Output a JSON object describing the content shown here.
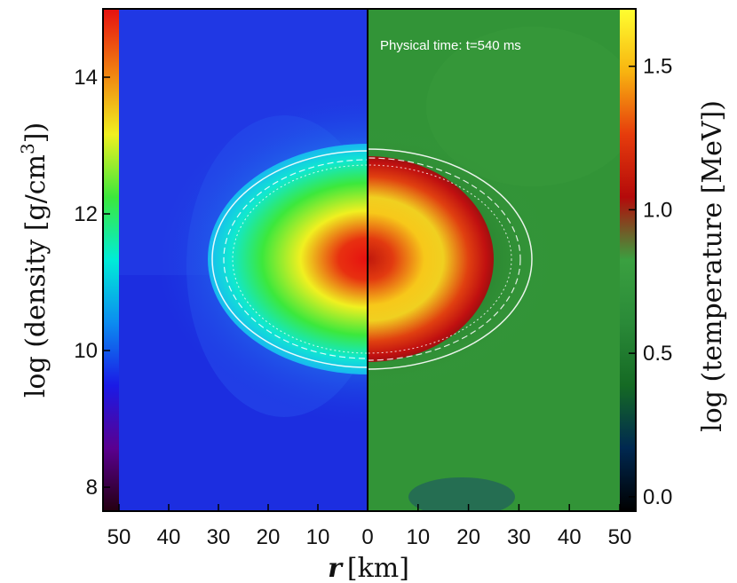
{
  "chart_data": {
    "type": "heatmap",
    "title": "",
    "annotation": "Physical time: t=540 ms",
    "xlabel": {
      "var": "r",
      "unit": "[km]"
    },
    "x_ticks": [
      50,
      40,
      30,
      20,
      10,
      0,
      10,
      20,
      30,
      40,
      50
    ],
    "xlim": [
      -50,
      50
    ],
    "panels": [
      {
        "name": "density",
        "side": "left",
        "colorbar_side": "left",
        "ylabel": {
          "prefix": "log (density [g/cm",
          "sup": "3",
          "suffix": "])"
        },
        "clim": [
          7.65,
          15.0
        ],
        "ticks": [
          8,
          10,
          12,
          14
        ],
        "tick_labels": [
          "8",
          "10",
          "12",
          "14"
        ],
        "colormap": [
          "#240010",
          "#5a0090",
          "#1a1ae6",
          "#0c8cf0",
          "#00ecd8",
          "#3ce83c",
          "#f0f020",
          "#f08010",
          "#e61010"
        ],
        "background_value": 8.9,
        "core_value": 13.6
      },
      {
        "name": "temperature",
        "side": "right",
        "colorbar_side": "right",
        "ylabel": {
          "prefix": "log (temperature [MeV])"
        },
        "clim": [
          -0.05,
          1.7
        ],
        "ticks": [
          0.0,
          0.5,
          1.0,
          1.5
        ],
        "tick_labels": [
          "0.0",
          "0.5",
          "1.0",
          "1.5"
        ],
        "colormap": [
          "#000000",
          "#002850",
          "#156a24",
          "#2a8a38",
          "#3aa040",
          "#b40a0a",
          "#e63c0c",
          "#f8b410",
          "#ffff30"
        ],
        "background_value": 0.65,
        "core_value": 1.05
      }
    ],
    "contours": "white solid, dashed and dotted isolines around the dense core"
  }
}
